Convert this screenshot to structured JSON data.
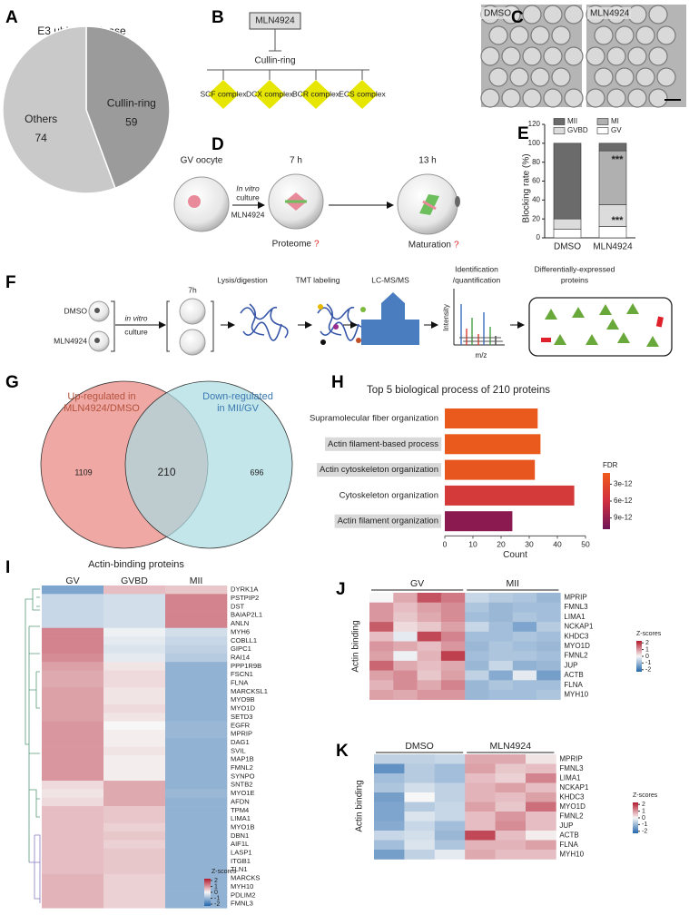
{
  "panel_labels": [
    "A",
    "B",
    "C",
    "D",
    "E",
    "F",
    "G",
    "H",
    "I",
    "J",
    "K"
  ],
  "diagrams": {
    "B": {
      "drug": "MLN4924",
      "target": "Cullin-ring",
      "complexes": [
        "SCF complex",
        "DCX complex",
        "BCR complex",
        "ECS complex"
      ]
    },
    "C": {
      "stages": [
        "GV oocyte",
        "7 h",
        "13 h"
      ],
      "treatment": [
        "In vitro",
        "culture",
        "MLN4924"
      ],
      "readouts": [
        {
          "label": "Proteome",
          "mark": "?"
        },
        {
          "label": "Maturation",
          "mark": "?"
        }
      ]
    },
    "D": {
      "conditions": [
        "DMSO",
        "MLN4924"
      ]
    },
    "F": {
      "groups": [
        "DMSO",
        "MLN4924"
      ],
      "time": "7h",
      "treatment": [
        "in vitro",
        "culture"
      ],
      "steps": [
        [
          "Lysis/digestion"
        ],
        [
          "TMT labeling"
        ],
        [
          "LC-MS/MS"
        ],
        [
          "Identification",
          "/quantification"
        ],
        [
          "Differentially-expressed",
          "proteins"
        ]
      ],
      "axes": [
        "Intensity",
        "m/z"
      ]
    }
  },
  "chart_data": [
    {
      "type": "pie",
      "title": "E3 ubiquitin ligase",
      "categories": [
        "Cullin-ring",
        "Others"
      ],
      "values": [
        59,
        74
      ],
      "colors": [
        "#9b9b9b",
        "#c9c9c9"
      ]
    },
    {
      "type": "stacked_bar",
      "ylabel": "Blocking rate (%)",
      "categories": [
        "DMSO",
        "MLN4924"
      ],
      "series": [
        {
          "name": "GV",
          "color": "#ffffff",
          "values": [
            9,
            12
          ]
        },
        {
          "name": "GVBD",
          "color": "#dcdcdc",
          "values": [
            11,
            23
          ]
        },
        {
          "name": "MI",
          "color": "#b0b0b0",
          "values": [
            0,
            57
          ]
        },
        {
          "name": "MII",
          "color": "#6b6b6b",
          "values": [
            80,
            8
          ]
        }
      ],
      "ylim": [
        0,
        120
      ],
      "yticks": [
        0,
        20,
        40,
        60,
        80,
        100,
        120
      ],
      "annotations": [
        "***",
        "***"
      ]
    },
    {
      "type": "venn",
      "sets": [
        {
          "name": [
            "Up-regulated in",
            "MLN4924/DMSO"
          ],
          "color": "#efa8a3",
          "text_color": "#b4523e"
        },
        {
          "name": [
            "Down-regulated",
            "in MII/GV"
          ],
          "color": "#a9dce3",
          "text_color": "#3a78b0"
        }
      ],
      "values": [
        1109,
        210,
        696
      ]
    },
    {
      "type": "barh",
      "title": "Top 5 biological process of 210 proteins",
      "categories": [
        "Supramolecular fiber organization",
        "Actin filament-based process",
        "Actin cytoskeleton organization",
        "Cytoskeleton organization",
        "Actin filament organization"
      ],
      "values": [
        33,
        34,
        32,
        46,
        24
      ],
      "colors": [
        "#e95a1c",
        "#e95a1c",
        "#e8561f",
        "#d43a3a",
        "#8a1a50"
      ],
      "highlight": [
        false,
        true,
        true,
        false,
        true
      ],
      "xlabel": "Count",
      "xlim": [
        0,
        50
      ],
      "xticks": [
        0,
        10,
        20,
        30,
        40,
        50
      ],
      "colorbar": {
        "title": "FDR",
        "lim": [
          1e-12,
          1.1e-11
        ],
        "colors": [
          "#f05a1a",
          "#d02f40",
          "#6e1557"
        ],
        "ticks": [
          {
            "value": 3e-12,
            "label": "3e-12"
          },
          {
            "value": 6e-12,
            "label": "6e-12"
          },
          {
            "value": 9e-12,
            "label": "9e-12"
          }
        ]
      }
    },
    {
      "type": "heatmap",
      "title": "Actin-binding proteins",
      "rows": [
        "DYRK1A",
        "PSTPIP2",
        "DST",
        "BAIAP2L1",
        "ANLN",
        "MYH6",
        "COBLL1",
        "GIPC1",
        "RAI14",
        "PPP1R9B",
        "FSCN1",
        "FLNA",
        "MARCKSL1",
        "MYO9B",
        "MYO1D",
        "SETD3",
        "EGFR",
        "MPRIP",
        "DAG1",
        "SVIL",
        "MAP1B",
        "FMNL2",
        "SYNPO",
        "SNTB2",
        "MYO1E",
        "AFDN",
        "TPM4",
        "LIMA1",
        "MYO1B",
        "DBN1",
        "AIF1L",
        "LASP1",
        "ITGB1",
        "TLN1",
        "MARCKS",
        "MYH10",
        "PDLIM2",
        "FMNL3"
      ],
      "series": [
        {
          "name": "GV",
          "values": [
            -1.3,
            -0.5,
            -0.5,
            -0.5,
            -0.5,
            1.2,
            1.2,
            1.2,
            1.1,
            0.9,
            0.8,
            0.8,
            0.9,
            0.9,
            0.9,
            0.9,
            1.0,
            1.0,
            1.0,
            1.0,
            1.0,
            1.0,
            1.0,
            0.3,
            0.2,
            0.3,
            0.6,
            0.6,
            0.6,
            0.6,
            0.6,
            0.6,
            0.6,
            0.6,
            0.7,
            0.7,
            0.7,
            0.7
          ]
        },
        {
          "name": "GVBD",
          "values": [
            0.6,
            -0.4,
            -0.4,
            -0.4,
            -0.4,
            -0.1,
            -0.2,
            -0.3,
            -0.2,
            0.2,
            0.3,
            0.3,
            0.2,
            0.2,
            0.3,
            0.2,
            0.0,
            0.1,
            0.1,
            0.2,
            0.1,
            0.1,
            0.1,
            0.8,
            0.8,
            0.8,
            0.5,
            0.5,
            0.4,
            0.5,
            0.4,
            0.5,
            0.5,
            0.5,
            0.4,
            0.4,
            0.4,
            0.4
          ]
        },
        {
          "name": "MII",
          "values": [
            0.5,
            1.2,
            1.2,
            1.2,
            1.2,
            -0.4,
            -0.5,
            -0.6,
            -0.7,
            -1.1,
            -1.1,
            -1.1,
            -1.1,
            -1.1,
            -1.1,
            -1.1,
            -1.0,
            -1.0,
            -1.1,
            -1.1,
            -1.1,
            -1.1,
            -1.1,
            -1.1,
            -1.0,
            -1.1,
            -1.1,
            -1.1,
            -1.1,
            -1.1,
            -1.1,
            -1.1,
            -1.1,
            -1.1,
            -1.1,
            -1.1,
            -1.1,
            -1.1
          ]
        }
      ],
      "colorbar": {
        "title": "Z-scores",
        "lim": [
          -2.3,
          2.3
        ],
        "colors": [
          "#2166ac",
          "#f7f7f7",
          "#b2182b"
        ],
        "ticks": [
          2,
          1,
          0,
          -1,
          -2
        ]
      }
    },
    {
      "type": "heatmap",
      "ylabel": "Actin binding",
      "rows": [
        "MPRIP",
        "FMNL3",
        "LIMA1",
        "NCKAP1",
        "KHDC3",
        "MYO1D",
        "FMNL2",
        "JUP",
        "ACTB",
        "FLNA",
        "MYH10"
      ],
      "series": [
        {
          "name": "GV",
          "values": [
            [
              0.0,
              0.8,
              1.7,
              1.3
            ],
            [
              1.0,
              0.6,
              0.9,
              1.1
            ],
            [
              1.0,
              0.5,
              0.8,
              1.1
            ],
            [
              1.6,
              0.3,
              0.5,
              0.9
            ],
            [
              0.6,
              -0.2,
              1.8,
              1.2
            ],
            [
              1.0,
              0.8,
              0.6,
              1.0
            ],
            [
              0.9,
              -0.1,
              0.7,
              1.9
            ],
            [
              1.5,
              0.8,
              0.6,
              0.8
            ],
            [
              0.9,
              1.1,
              0.5,
              0.9
            ],
            [
              0.7,
              1.1,
              0.8,
              1.2
            ],
            [
              0.9,
              0.8,
              1.0,
              1.0
            ]
          ]
        },
        {
          "name": "MII",
          "values": [
            [
              -0.5,
              -0.7,
              -0.8,
              -1.0
            ],
            [
              -0.8,
              -1.0,
              -0.9,
              -0.9
            ],
            [
              -0.9,
              -1.0,
              -0.8,
              -0.9
            ],
            [
              -0.5,
              -0.9,
              -1.3,
              -0.7
            ],
            [
              -0.9,
              -0.9,
              -0.8,
              -0.9
            ],
            [
              -1.0,
              -0.8,
              -0.9,
              -1.0
            ],
            [
              -0.9,
              -0.8,
              -0.8,
              -0.9
            ],
            [
              -1.0,
              -0.5,
              -1.1,
              -1.0
            ],
            [
              -0.6,
              -1.2,
              -0.2,
              -1.4
            ],
            [
              -1.0,
              -0.8,
              -0.9,
              -0.9
            ],
            [
              -1.0,
              -0.9,
              -0.9,
              -0.8
            ]
          ]
        }
      ],
      "colorbar": {
        "title": "Z-scores",
        "lim": [
          -2.3,
          2.3
        ],
        "colors": [
          "#2166ac",
          "#f7f7f7",
          "#b2182b"
        ],
        "ticks": [
          2,
          1,
          0,
          -1,
          -2
        ]
      }
    },
    {
      "type": "heatmap",
      "ylabel": "Actin binding",
      "rows": [
        "MPRIP",
        "FMNL3",
        "LIMA1",
        "NCKAP1",
        "KHDC3",
        "MYO1D",
        "FMNL2",
        "JUP",
        "ACTB",
        "FLNA",
        "MYH10"
      ],
      "series": [
        {
          "name": "DMSO",
          "values": [
            [
              -0.6,
              -0.6,
              -0.5
            ],
            [
              -1.6,
              -0.7,
              -0.9
            ],
            [
              -0.9,
              -0.7,
              -0.9
            ],
            [
              -0.8,
              -0.4,
              -0.6
            ],
            [
              -1.4,
              0.0,
              -0.6
            ],
            [
              -1.3,
              -0.7,
              -0.5
            ],
            [
              -1.3,
              -0.3,
              -0.5
            ],
            [
              -1.2,
              -0.5,
              -0.9
            ],
            [
              -0.5,
              -0.4,
              -1.0
            ],
            [
              -0.9,
              -0.3,
              -0.8
            ],
            [
              -1.4,
              -0.6,
              -0.2
            ]
          ]
        },
        {
          "name": "MLN4924",
          "values": [
            [
              0.8,
              0.8,
              0.2
            ],
            [
              0.9,
              0.5,
              0.6
            ],
            [
              0.6,
              0.4,
              1.2
            ],
            [
              0.7,
              0.9,
              0.6
            ],
            [
              0.7,
              0.6,
              0.9
            ],
            [
              0.9,
              0.5,
              1.4
            ],
            [
              0.6,
              1.0,
              0.6
            ],
            [
              0.6,
              1.1,
              0.6
            ],
            [
              1.8,
              0.6,
              0.1
            ],
            [
              0.7,
              0.7,
              0.9
            ],
            [
              0.8,
              0.6,
              0.6
            ]
          ]
        }
      ],
      "colorbar": {
        "title": "Z-scores",
        "lim": [
          -2.3,
          2.3
        ],
        "colors": [
          "#2166ac",
          "#f7f7f7",
          "#b2182b"
        ],
        "ticks": [
          2,
          1,
          0,
          -1,
          -2
        ]
      }
    }
  ]
}
